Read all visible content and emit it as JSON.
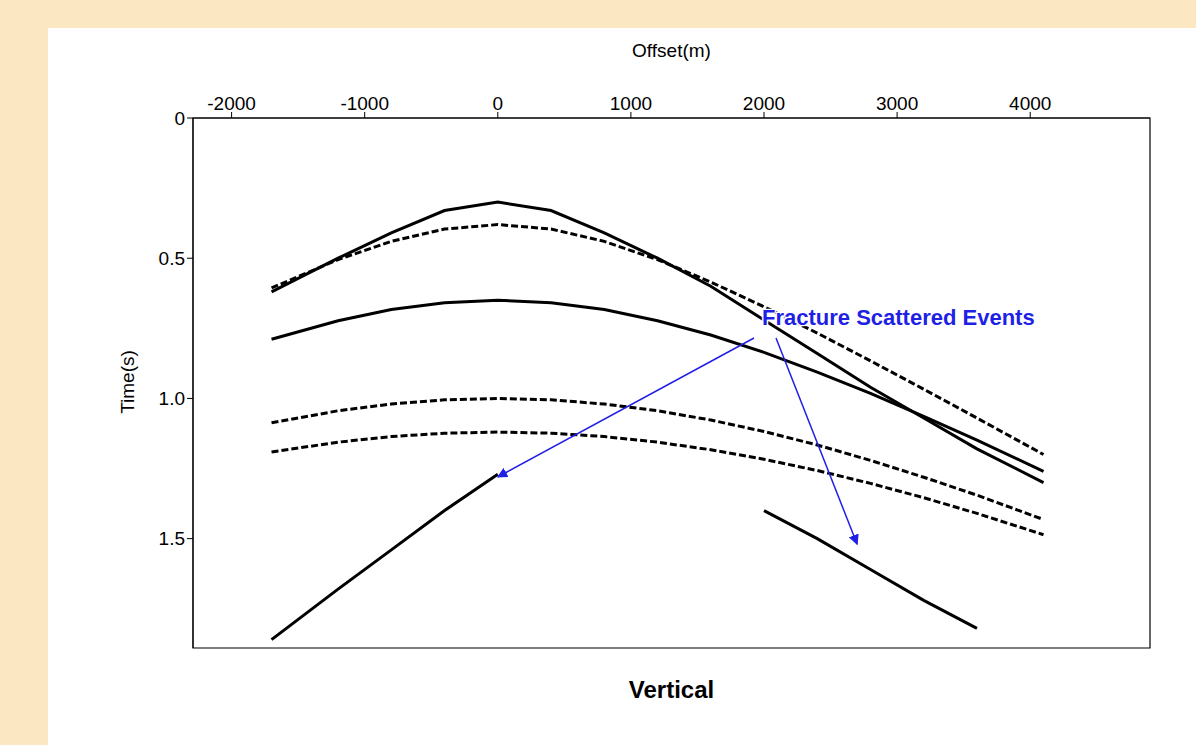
{
  "chart_data": {
    "type": "line",
    "title": "Vertical",
    "x_label": "Offset(m)",
    "y_label": "Time(s)",
    "xlim": [
      -2290,
      4900
    ],
    "xticks": [
      -2000,
      -1000,
      0,
      1000,
      2000,
      3000,
      4000
    ],
    "ylim": [
      0,
      1.89
    ],
    "yticks": [
      0,
      0.5,
      {
        "value": 1,
        "label": "1.0"
      },
      1.5
    ],
    "x": [
      -1700,
      -1200,
      -800,
      -400,
      0,
      400,
      800,
      1200,
      1600,
      2000,
      2400,
      2800,
      3200,
      3600,
      4100
    ],
    "series": [
      {
        "color": "#000000",
        "line_style": "solid",
        "values": [
          0.62,
          0.5,
          0.41,
          0.33,
          0.3,
          0.33,
          0.41,
          0.5,
          0.6,
          0.72,
          0.84,
          0.96,
          1.07,
          1.18,
          1.3
        ]
      },
      {
        "color": "#000000",
        "line_style": "dashed",
        "values": [
          0.606,
          0.505,
          0.44,
          0.396,
          0.38,
          0.396,
          0.44,
          0.505,
          0.585,
          0.673,
          0.767,
          0.866,
          0.967,
          1.07,
          1.2
        ]
      },
      {
        "color": "#000000",
        "line_style": "solid",
        "values": [
          0.789,
          0.723,
          0.683,
          0.659,
          0.65,
          0.659,
          0.683,
          0.723,
          0.774,
          0.836,
          0.906,
          0.982,
          1.064,
          1.149,
          1.26
        ]
      },
      {
        "color": "#000000",
        "line_style": "dashed",
        "values": [
          1.087,
          1.044,
          1.02,
          1.005,
          1.0,
          1.005,
          1.02,
          1.044,
          1.077,
          1.118,
          1.166,
          1.221,
          1.281,
          1.345,
          1.432
        ]
      },
      {
        "color": "#000000",
        "line_style": "dashed",
        "values": [
          1.191,
          1.156,
          1.136,
          1.124,
          1.12,
          1.124,
          1.136,
          1.156,
          1.183,
          1.217,
          1.257,
          1.303,
          1.354,
          1.41,
          1.486
        ]
      },
      {
        "color": "#000000",
        "line_style": "solid",
        "values": [
          1.86,
          1.68,
          1.54,
          1.4,
          1.27,
          null,
          null,
          null,
          null,
          null,
          null,
          null,
          null,
          null,
          null
        ]
      },
      {
        "color": "#000000",
        "line_style": "solid",
        "values": [
          null,
          null,
          null,
          null,
          null,
          null,
          null,
          null,
          null,
          1.4,
          1.5,
          1.61,
          1.72,
          1.82,
          null
        ]
      }
    ],
    "annotations": [
      {
        "text": "Fracture Scattered Events",
        "color": "#1f1fe6",
        "points": [
          {
            "x": 0,
            "y": 1.28
          },
          {
            "x": 2700,
            "y": 1.52
          }
        ]
      }
    ],
    "grid": false,
    "tick_labels": true
  }
}
